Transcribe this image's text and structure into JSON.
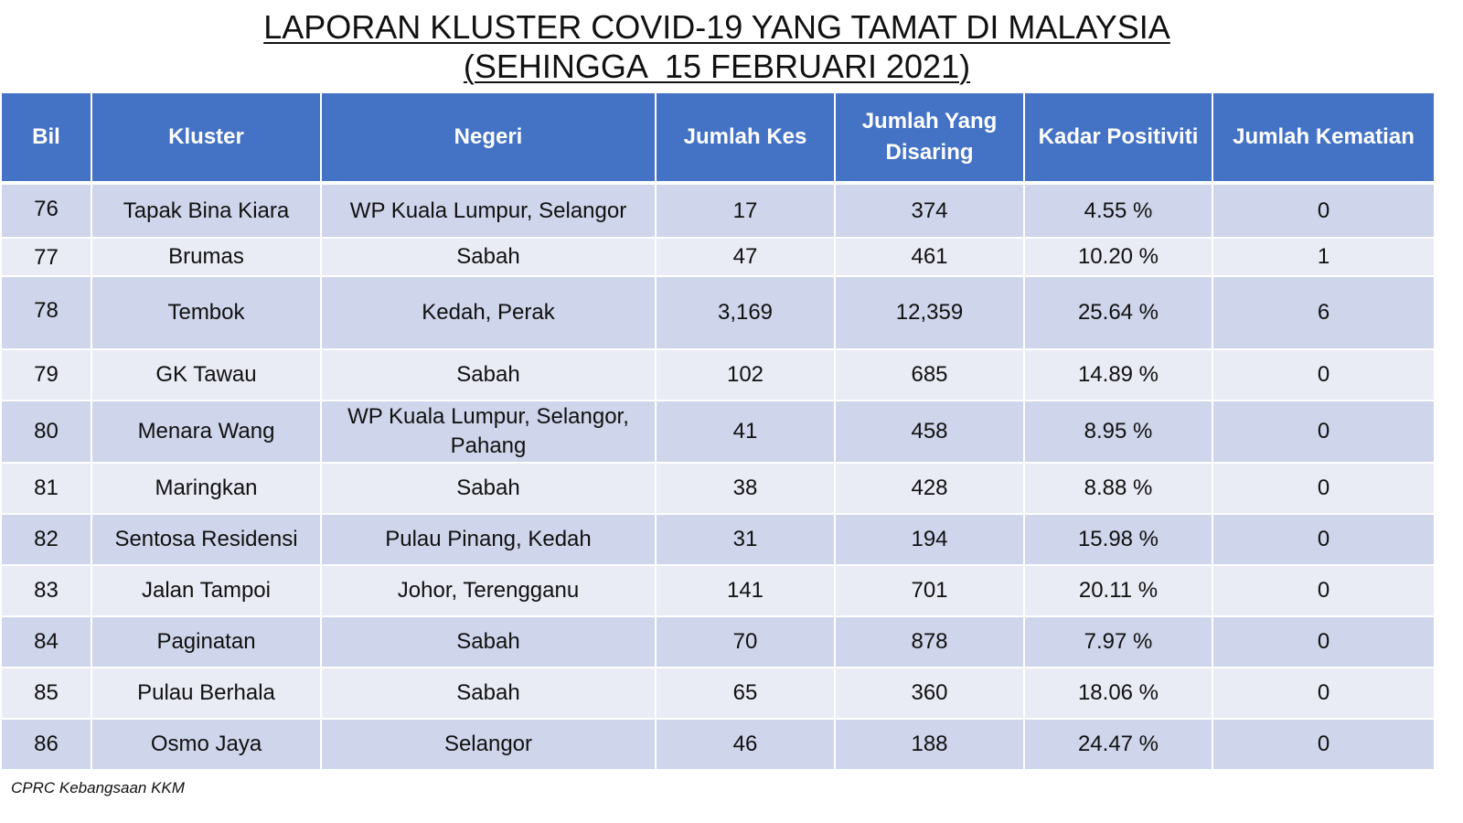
{
  "title": {
    "line1": "LAPORAN KLUSTER COVID-19 YANG TAMAT DI MALAYSIA",
    "line2": "(SEHINGGA  15 FEBRUARI 2021)"
  },
  "table": {
    "headers": {
      "bil": "Bil",
      "kluster": "Kluster",
      "negeri": "Negeri",
      "jumlah_kes": "Jumlah Kes",
      "jumlah_disaring": "Jumlah Yang Disaring",
      "kadar_positiviti": "Kadar Positiviti",
      "jumlah_kematian": "Jumlah Kematian"
    },
    "rows": [
      {
        "bil": "76",
        "kluster": "Tapak Bina Kiara",
        "negeri": "WP Kuala Lumpur, Selangor",
        "kes": "17",
        "disaring": "374",
        "positiviti": "4.55 %",
        "kematian": "0"
      },
      {
        "bil": "77",
        "kluster": "Brumas",
        "negeri": "Sabah",
        "kes": "47",
        "disaring": "461",
        "positiviti": "10.20 %",
        "kematian": "1"
      },
      {
        "bil": "78",
        "kluster": "Tembok",
        "negeri": "Kedah, Perak",
        "kes": "3,169",
        "disaring": "12,359",
        "positiviti": "25.64 %",
        "kematian": "6"
      },
      {
        "bil": "79",
        "kluster": "GK Tawau",
        "negeri": "Sabah",
        "kes": "102",
        "disaring": "685",
        "positiviti": "14.89 %",
        "kematian": "0"
      },
      {
        "bil": "80",
        "kluster": "Menara Wang",
        "negeri": "WP Kuala Lumpur, Selangor, Pahang",
        "kes": "41",
        "disaring": "458",
        "positiviti": "8.95 %",
        "kematian": "0"
      },
      {
        "bil": "81",
        "kluster": "Maringkan",
        "negeri": "Sabah",
        "kes": "38",
        "disaring": "428",
        "positiviti": "8.88 %",
        "kematian": "0"
      },
      {
        "bil": "82",
        "kluster": "Sentosa Residensi",
        "negeri": "Pulau Pinang, Kedah",
        "kes": "31",
        "disaring": "194",
        "positiviti": "15.98 %",
        "kematian": "0"
      },
      {
        "bil": "83",
        "kluster": "Jalan Tampoi",
        "negeri": "Johor, Terengganu",
        "kes": "141",
        "disaring": "701",
        "positiviti": "20.11 %",
        "kematian": "0"
      },
      {
        "bil": "84",
        "kluster": "Paginatan",
        "negeri": "Sabah",
        "kes": "70",
        "disaring": "878",
        "positiviti": "7.97 %",
        "kematian": "0"
      },
      {
        "bil": "85",
        "kluster": "Pulau Berhala",
        "negeri": "Sabah",
        "kes": "65",
        "disaring": "360",
        "positiviti": "18.06 %",
        "kematian": "0"
      },
      {
        "bil": "86",
        "kluster": "Osmo Jaya",
        "negeri": "Selangor",
        "kes": "46",
        "disaring": "188",
        "positiviti": "24.47 %",
        "kematian": "0"
      }
    ]
  },
  "footer": {
    "source": "CPRC Kebangsaan KKM"
  },
  "colors": {
    "header_bg": "#4472c4",
    "row_dark": "#cfd5ea",
    "row_light": "#e9ebf5"
  }
}
